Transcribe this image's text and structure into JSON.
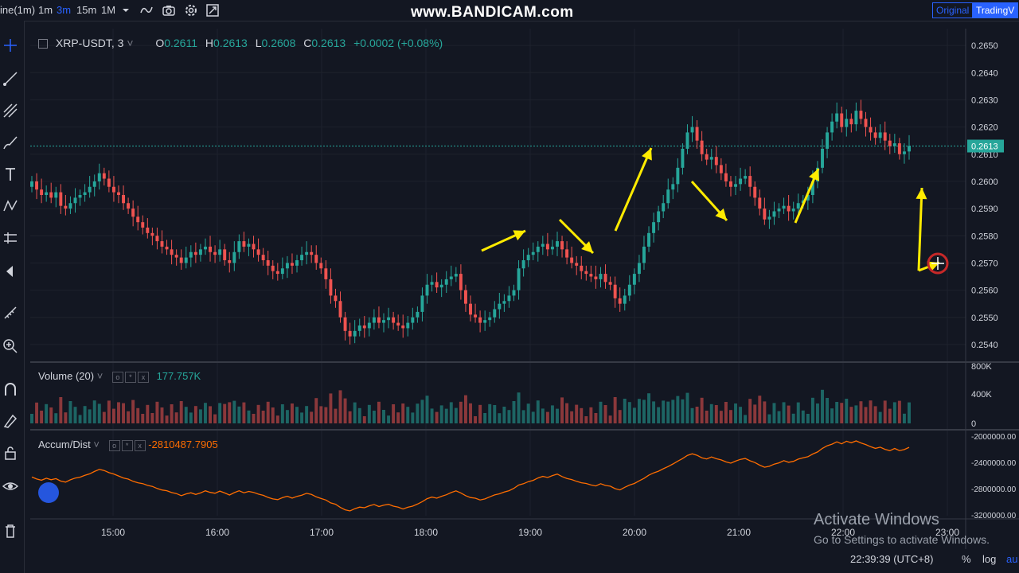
{
  "toolbar": {
    "interval_label": "ine(1m)",
    "intervals": [
      "1m",
      "3m",
      "15m",
      "1M"
    ],
    "active_interval": "3m",
    "icons": [
      "chevron-down-icon",
      "indicators-icon",
      "camera-icon",
      "settings-icon",
      "fullscreen-icon"
    ]
  },
  "watermark": "www.BANDICAM.com",
  "view_toggle": {
    "original": "Original",
    "tradingview": "TradingV"
  },
  "symbol": {
    "name": "XRP-USDT, 3",
    "open_label": "O",
    "open": "0.2611",
    "high_label": "H",
    "high": "0.2613",
    "low_label": "L",
    "low": "0.2608",
    "close_label": "C",
    "close": "0.2613",
    "change": "+0.0002 (+0.08%)"
  },
  "price_axis": {
    "ticks": [
      "0.2650",
      "0.2640",
      "0.2630",
      "0.2620",
      "0.2610",
      "0.2600",
      "0.2590",
      "0.2580",
      "0.2570",
      "0.2560",
      "0.2550",
      "0.2540"
    ],
    "last_price": "0.2613"
  },
  "volume": {
    "label": "Volume (20)",
    "value": "177.757K",
    "ticks": [
      "800K",
      "400K",
      "0"
    ]
  },
  "accum": {
    "label": "Accum/Dist",
    "value": "-2810487.7905",
    "ticks": [
      "-2000000.00",
      "-2400000.00",
      "-2800000.00",
      "-3200000.00"
    ]
  },
  "time_axis": [
    "15:00",
    "16:00",
    "17:00",
    "18:00",
    "19:00",
    "20:00",
    "21:00",
    "22:00",
    "23:00"
  ],
  "footer": {
    "clock": "22:39:39 (UTC+8)",
    "percent": "%",
    "log": "log",
    "auto": "au"
  },
  "overlay": {
    "activate_title": "Activate Windows",
    "activate_sub": "Go to Settings to activate Windows."
  },
  "colors": {
    "background": "#131722",
    "up": "#26a69a",
    "down": "#ef5350",
    "accum_line": "#ff6d00",
    "annotation_arrow": "#ffeb00",
    "grid": "#1e222d"
  },
  "chart_data": {
    "type": "candlestick",
    "symbol": "XRP-USDT, 3",
    "x_ticks": [
      "15:00",
      "16:00",
      "17:00",
      "18:00",
      "19:00",
      "20:00",
      "21:00",
      "22:00",
      "23:00"
    ],
    "ylim": [
      0.2535,
      0.2655
    ],
    "closes": [
      0.26,
      0.2597,
      0.2595,
      0.2596,
      0.2594,
      0.2596,
      0.2591,
      0.259,
      0.2592,
      0.2594,
      0.2595,
      0.2596,
      0.2598,
      0.26,
      0.2603,
      0.2601,
      0.2598,
      0.2596,
      0.2595,
      0.2592,
      0.259,
      0.2587,
      0.2585,
      0.2583,
      0.2581,
      0.258,
      0.2578,
      0.2576,
      0.2575,
      0.2573,
      0.2572,
      0.257,
      0.2572,
      0.2574,
      0.2573,
      0.2575,
      0.2576,
      0.2574,
      0.2573,
      0.2575,
      0.2571,
      0.257,
      0.2574,
      0.2578,
      0.2576,
      0.2577,
      0.2575,
      0.2573,
      0.2571,
      0.2569,
      0.2567,
      0.2566,
      0.2568,
      0.257,
      0.2569,
      0.2571,
      0.2573,
      0.2574,
      0.2573,
      0.257,
      0.2568,
      0.2564,
      0.2558,
      0.2556,
      0.255,
      0.2545,
      0.2543,
      0.2545,
      0.2547,
      0.2546,
      0.2548,
      0.255,
      0.2548,
      0.2549,
      0.255,
      0.2548,
      0.2547,
      0.2546,
      0.2548,
      0.255,
      0.2552,
      0.2558,
      0.2562,
      0.2563,
      0.2561,
      0.2562,
      0.2564,
      0.2565,
      0.2566,
      0.256,
      0.2555,
      0.2551,
      0.255,
      0.2548,
      0.2549,
      0.255,
      0.2553,
      0.2555,
      0.2556,
      0.2558,
      0.256,
      0.2568,
      0.2571,
      0.2573,
      0.2574,
      0.2576,
      0.2577,
      0.2575,
      0.2576,
      0.2578,
      0.2575,
      0.2572,
      0.257,
      0.2569,
      0.2567,
      0.2566,
      0.2565,
      0.2564,
      0.2566,
      0.2563,
      0.2562,
      0.2557,
      0.2555,
      0.2558,
      0.2562,
      0.2566,
      0.257,
      0.2576,
      0.2581,
      0.2585,
      0.2589,
      0.2592,
      0.2597,
      0.2599,
      0.2605,
      0.2612,
      0.2618,
      0.262,
      0.2615,
      0.261,
      0.2608,
      0.2609,
      0.2606,
      0.2603,
      0.26,
      0.2598,
      0.2599,
      0.2601,
      0.2602,
      0.2598,
      0.2594,
      0.259,
      0.2586,
      0.2587,
      0.2589,
      0.259,
      0.2591,
      0.2589,
      0.259,
      0.2592,
      0.2593,
      0.2595,
      0.26,
      0.2605,
      0.2612,
      0.2618,
      0.2622,
      0.2625,
      0.262,
      0.2623,
      0.2621,
      0.2626,
      0.2623,
      0.262,
      0.2618,
      0.2616,
      0.2618,
      0.2615,
      0.2613,
      0.2614,
      0.261,
      0.2611,
      0.2613
    ]
  }
}
